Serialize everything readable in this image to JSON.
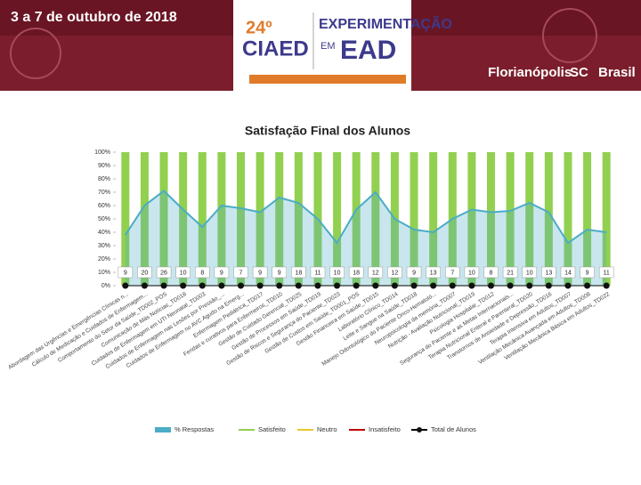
{
  "header": {
    "date": "3 a 7 de outubro de 2018",
    "edition": "24º",
    "event": "CIAED",
    "theme_line1": "EXPERIMENTAÇÃO",
    "theme_em": "EM",
    "theme_line2": "EAD",
    "city": "Florianópolis",
    "state": "SC",
    "country": "Brasil"
  },
  "chart_data": {
    "type": "line",
    "title": "Satisfação Final dos Alunos",
    "categories": [
      "Abordagem das Urgências e Emergências Clínicas n...",
      "Cálculo de Medicação e Cuidados de Enfermagem...",
      "Comportamento do Setor da Saúde_TD002_POS",
      "Comunicação de Más Notícias_TD018",
      "Cuidados de Enfermagem em UTI Neonatal_TD003",
      "Cuidados de Enfermagem nas Lesões por Pressão_...",
      "Cuidados de Enfermagem no AVC Agudo na Emerg...",
      "Enfermagem Pediátrica_TD017",
      "Feridas e curativos para Enfermeiros_TD010",
      "Gestão de Cuidado Gerencial_TD025",
      "Gestão de Processos em Saúde_TD019",
      "Gestão de Riscos e Segurança do Paciente_TD023",
      "Gestão de Custos em Saúde_TD001_POS",
      "Gestão Financeira em Saúde_TD015",
      "Laboratório Clínico_TD014",
      "Leite e Sangue na Saúde_TD018",
      "Manejo Odontológico do Paciente Onco-Hematoló...",
      "Neuropsicologia da memória_TD007",
      "Nutrição - Avaliação Nutricional_TD019",
      "Psicologia Hospitalar_TD012",
      "Segurança do Paciente e as Metas Internacionais...",
      "Terapia Nutricional Enteral e Parenteral_TD020",
      "Transtornos de Ansiedade e Depressão_TD016",
      "Terapia Intensiva em Adultos_TD007",
      "Ventilação Mecânica Avançada em Adultos_TD008",
      "Ventilação Mecânica Básica em Adultos_TD022"
    ],
    "series": [
      {
        "name": "% Respostas",
        "color": "#4bacc6",
        "values": [
          38,
          60,
          71,
          57,
          44,
          60,
          58,
          55,
          66,
          62,
          50,
          32,
          57,
          70,
          50,
          42,
          40,
          50,
          57,
          55,
          56,
          62,
          55,
          32,
          42,
          40
        ]
      },
      {
        "name": "Satisfeito",
        "color": "#92d050",
        "values": [
          100,
          100,
          100,
          100,
          100,
          100,
          100,
          100,
          100,
          100,
          100,
          100,
          100,
          100,
          100,
          100,
          100,
          100,
          100,
          100,
          100,
          100,
          100,
          100,
          100,
          100
        ]
      },
      {
        "name": "Neutro",
        "color": "#e8c630",
        "values": [
          0,
          0,
          0,
          0,
          0,
          0,
          0,
          0,
          0,
          0,
          0,
          0,
          0,
          0,
          0,
          0,
          0,
          0,
          0,
          0,
          0,
          0,
          0,
          0,
          0,
          0
        ]
      },
      {
        "name": "Insatisfeito",
        "color": "#c00000",
        "values": [
          0,
          0,
          0,
          0,
          0,
          0,
          0,
          0,
          0,
          0,
          0,
          0,
          0,
          0,
          0,
          0,
          0,
          0,
          0,
          0,
          0,
          0,
          0,
          0,
          0,
          0
        ]
      },
      {
        "name": "Total de Alunos",
        "color": "#000000",
        "values": [
          9,
          20,
          26,
          10,
          8,
          9,
          7,
          9,
          9,
          18,
          11,
          10,
          18,
          12,
          12,
          9,
          13,
          7,
          10,
          8,
          21,
          10,
          13,
          14,
          9,
          11
        ]
      }
    ],
    "ylim": [
      0,
      100
    ],
    "yticks": [
      {
        "value": 0,
        "label": "0%"
      },
      {
        "value": 10,
        "label": "10%"
      },
      {
        "value": 20,
        "label": "20%"
      },
      {
        "value": 30,
        "label": "30%"
      },
      {
        "value": 40,
        "label": "40%"
      },
      {
        "value": 50,
        "label": "50%"
      },
      {
        "value": 60,
        "label": "60%"
      },
      {
        "value": 70,
        "label": "70%"
      },
      {
        "value": 80,
        "label": "80%"
      },
      {
        "value": 90,
        "label": "90%"
      },
      {
        "value": 100,
        "label": "100%"
      }
    ],
    "legend": "bottom"
  }
}
